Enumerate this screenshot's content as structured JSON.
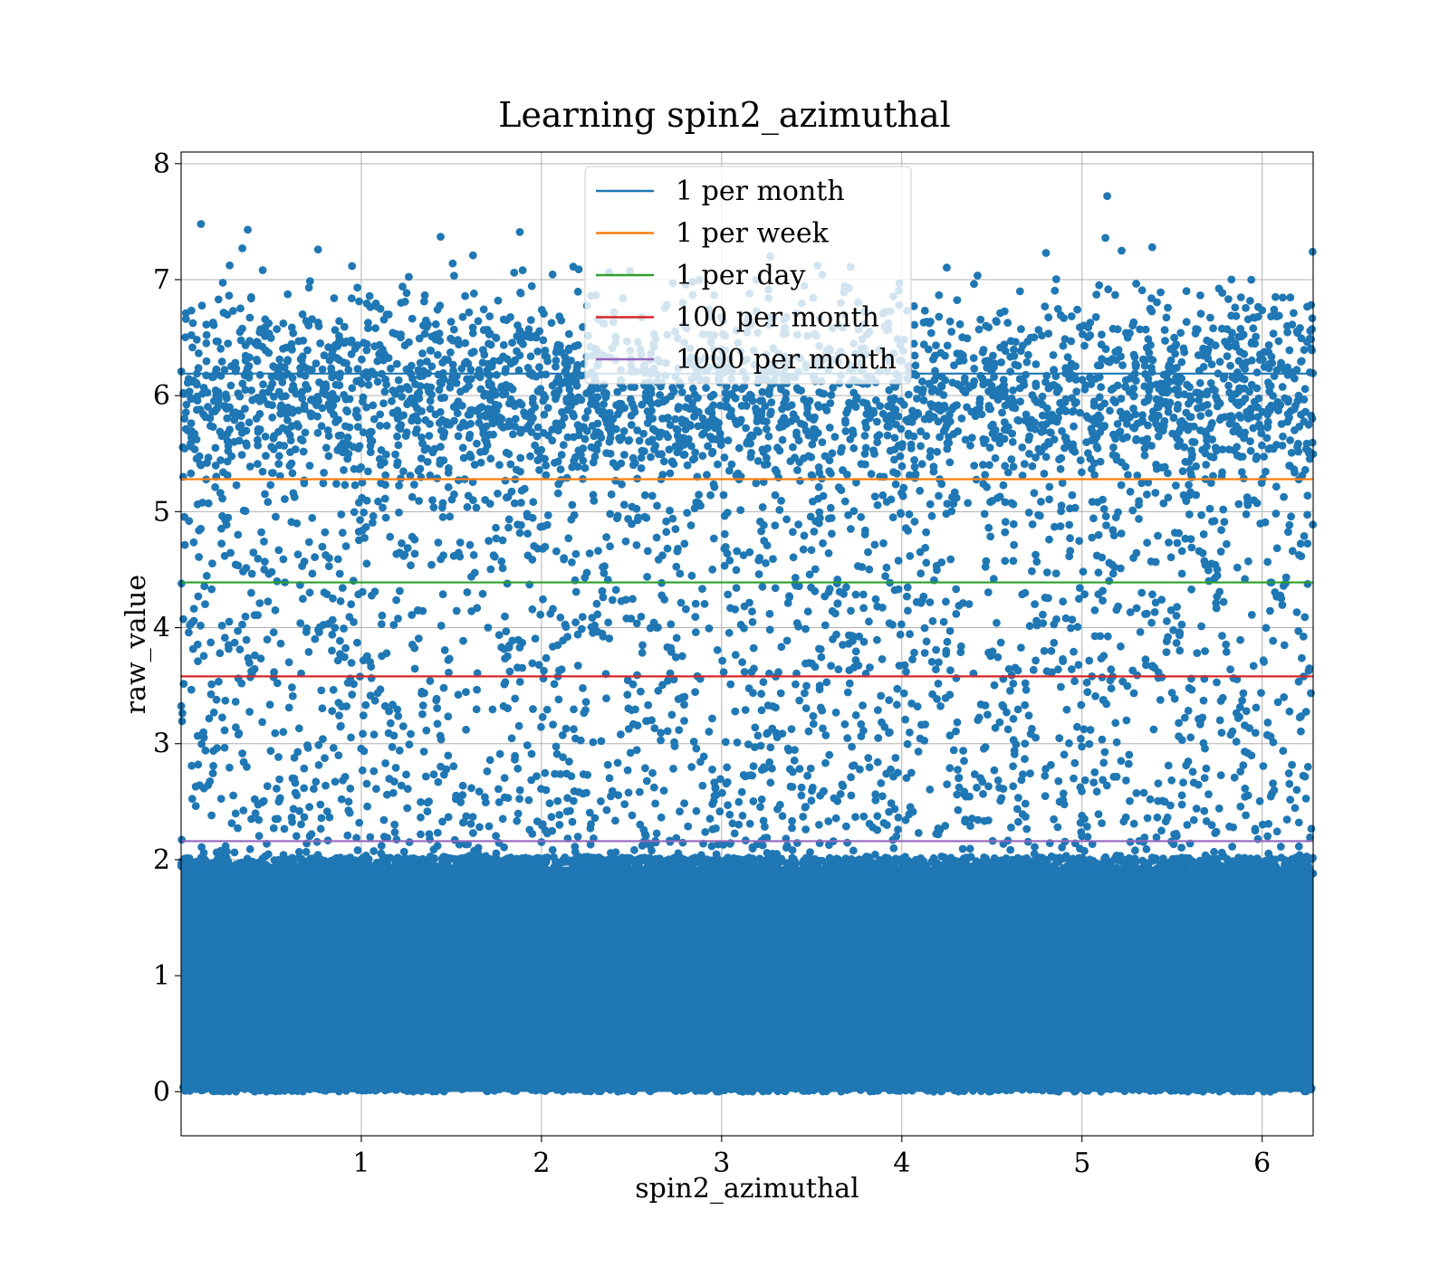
{
  "chart_data": {
    "type": "scatter",
    "title": "Learning spin2_azimuthal",
    "xlabel": "spin2_azimuthal",
    "ylabel": "raw_value",
    "xlim": [
      0.0,
      6.283
    ],
    "ylim": [
      -0.38,
      8.1
    ],
    "xticks": [
      {
        "value": 1,
        "label": "1"
      },
      {
        "value": 2,
        "label": "2"
      },
      {
        "value": 3,
        "label": "3"
      },
      {
        "value": 4,
        "label": "4"
      },
      {
        "value": 5,
        "label": "5"
      },
      {
        "value": 6,
        "label": "6"
      }
    ],
    "yticks": [
      {
        "value": 0,
        "label": "0"
      },
      {
        "value": 1,
        "label": "1"
      },
      {
        "value": 2,
        "label": "2"
      },
      {
        "value": 3,
        "label": "3"
      },
      {
        "value": 4,
        "label": "4"
      },
      {
        "value": 5,
        "label": "5"
      },
      {
        "value": 6,
        "label": "6"
      },
      {
        "value": 7,
        "label": "7"
      },
      {
        "value": 8,
        "label": "8"
      }
    ],
    "grid": true,
    "legend_position": "top-center",
    "scatter_color": "#1f77b4",
    "scatter_distribution": {
      "dense_band": [
        0.0,
        2.0
      ],
      "sparse_band": [
        2.0,
        7.75
      ],
      "upper_cluster_center": 6.0
    },
    "highlight_points": [
      {
        "x": 0.11,
        "y": 7.48
      },
      {
        "x": 0.37,
        "y": 7.43
      },
      {
        "x": 0.34,
        "y": 7.27
      },
      {
        "x": 0.76,
        "y": 7.26
      },
      {
        "x": 1.44,
        "y": 7.37
      },
      {
        "x": 1.62,
        "y": 7.21
      },
      {
        "x": 1.88,
        "y": 7.41
      },
      {
        "x": 5.14,
        "y": 7.72
      },
      {
        "x": 5.13,
        "y": 7.36
      },
      {
        "x": 5.22,
        "y": 7.25
      },
      {
        "x": 5.39,
        "y": 7.28
      },
      {
        "x": 6.28,
        "y": 7.24
      },
      {
        "x": 4.8,
        "y": 7.23
      },
      {
        "x": 3.27,
        "y": 7.2
      }
    ],
    "hlines": [
      {
        "name": "1 per month",
        "y": 6.19,
        "color": "#1f77b4"
      },
      {
        "name": "1 per week",
        "y": 5.28,
        "color": "#ff7f0e"
      },
      {
        "name": "1 per day",
        "y": 4.39,
        "color": "#2ca02c"
      },
      {
        "name": "100 per month",
        "y": 3.58,
        "color": "#d62728"
      },
      {
        "name": "1000 per month",
        "y": 2.16,
        "color": "#9467bd"
      }
    ]
  }
}
